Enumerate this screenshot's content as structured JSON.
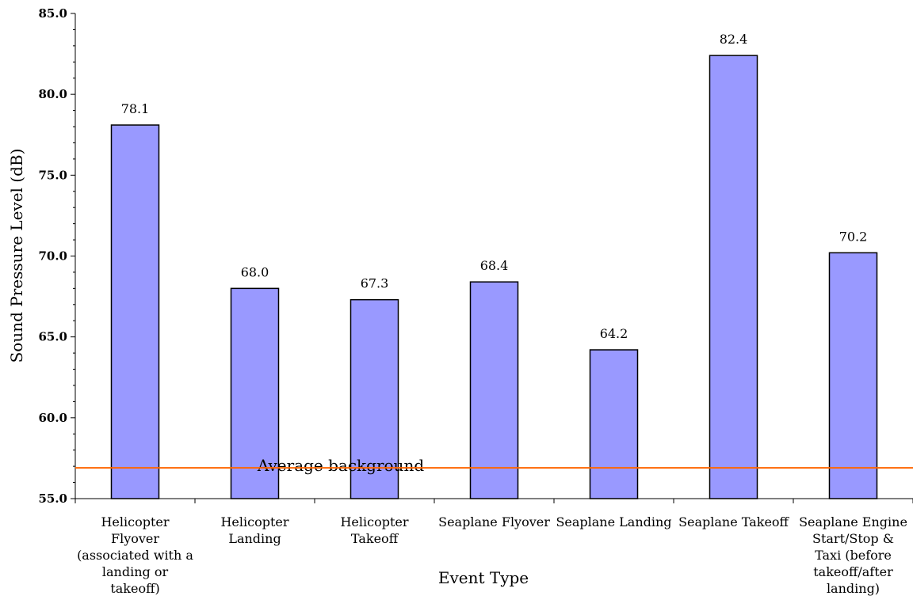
{
  "chart_data": {
    "type": "bar",
    "title": "",
    "xlabel": "Event Type",
    "ylabel": "Sound Pressure Level (dB)",
    "ylim": [
      55.0,
      85.0
    ],
    "y_ticks": [
      "55.0",
      "60.0",
      "65.0",
      "70.0",
      "75.0",
      "80.0",
      "85.0"
    ],
    "grid": false,
    "bar_color": "#9999ff",
    "categories": [
      [
        "Helicopter",
        "Flyover",
        "(associated with a",
        "landing or",
        "takeoff)"
      ],
      [
        "Helicopter",
        "Landing"
      ],
      [
        "Helicopter",
        "Takeoff"
      ],
      [
        "Seaplane Flyover"
      ],
      [
        "Seaplane Landing"
      ],
      [
        "Seaplane Takeoff"
      ],
      [
        "Seaplane Engine",
        "Start/Stop &",
        "Taxi (before",
        "takeoff/after",
        "landing)"
      ]
    ],
    "values": [
      78.1,
      68.0,
      67.3,
      68.4,
      64.2,
      82.4,
      70.2
    ],
    "value_labels": [
      "78.1",
      "68.0",
      "67.3",
      "68.4",
      "64.2",
      "82.4",
      "70.2"
    ],
    "reference_line": {
      "label": "Average background",
      "value": 56.9,
      "color": "#ff6600"
    }
  }
}
